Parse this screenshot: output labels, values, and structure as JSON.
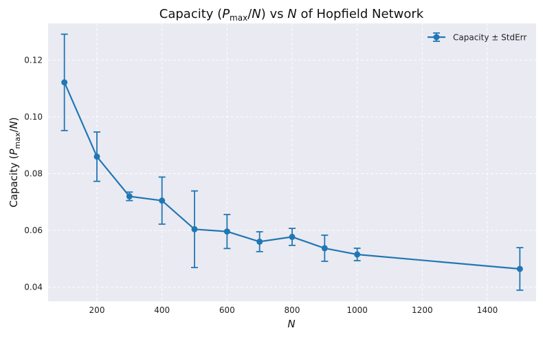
{
  "chart_data": {
    "type": "line",
    "title": {
      "pre": "Capacity (",
      "p": "P",
      "sub": "max",
      "mid": "/",
      "n": "N",
      "post1": ") vs ",
      "n2": "N",
      "post2": " of Hopfield Network"
    },
    "xlabel": "N",
    "ylabel": {
      "pre": "Capacity (",
      "p": "P",
      "sub": "max",
      "mid": "/",
      "n": "N",
      "post": ")"
    },
    "xlim": [
      50,
      1550
    ],
    "ylim": [
      0.035,
      0.133
    ],
    "xticks": [
      200,
      400,
      600,
      800,
      1000,
      1200,
      1400
    ],
    "xtick_labels": [
      "200",
      "400",
      "600",
      "800",
      "1000",
      "1200",
      "1400"
    ],
    "yticks": [
      0.04,
      0.06,
      0.08,
      0.1,
      0.12
    ],
    "ytick_labels": [
      "0.04",
      "0.06",
      "0.08",
      "0.10",
      "0.12"
    ],
    "grid": true,
    "legend_position": "top-right",
    "series": [
      {
        "name": "Capacity ± StdErr",
        "color": "#1f77b4",
        "points": [
          {
            "x": 100,
            "y": 0.1122,
            "err": 0.017
          },
          {
            "x": 200,
            "y": 0.086,
            "err": 0.0087
          },
          {
            "x": 300,
            "y": 0.072,
            "err": 0.0015
          },
          {
            "x": 400,
            "y": 0.0705,
            "err": 0.0083
          },
          {
            "x": 500,
            "y": 0.0604,
            "err": 0.0135
          },
          {
            "x": 600,
            "y": 0.0596,
            "err": 0.006
          },
          {
            "x": 700,
            "y": 0.056,
            "err": 0.0035
          },
          {
            "x": 800,
            "y": 0.0577,
            "err": 0.003
          },
          {
            "x": 900,
            "y": 0.0537,
            "err": 0.0046
          },
          {
            "x": 1000,
            "y": 0.0515,
            "err": 0.0022
          },
          {
            "x": 1500,
            "y": 0.0464,
            "err": 0.0075
          }
        ]
      }
    ]
  }
}
